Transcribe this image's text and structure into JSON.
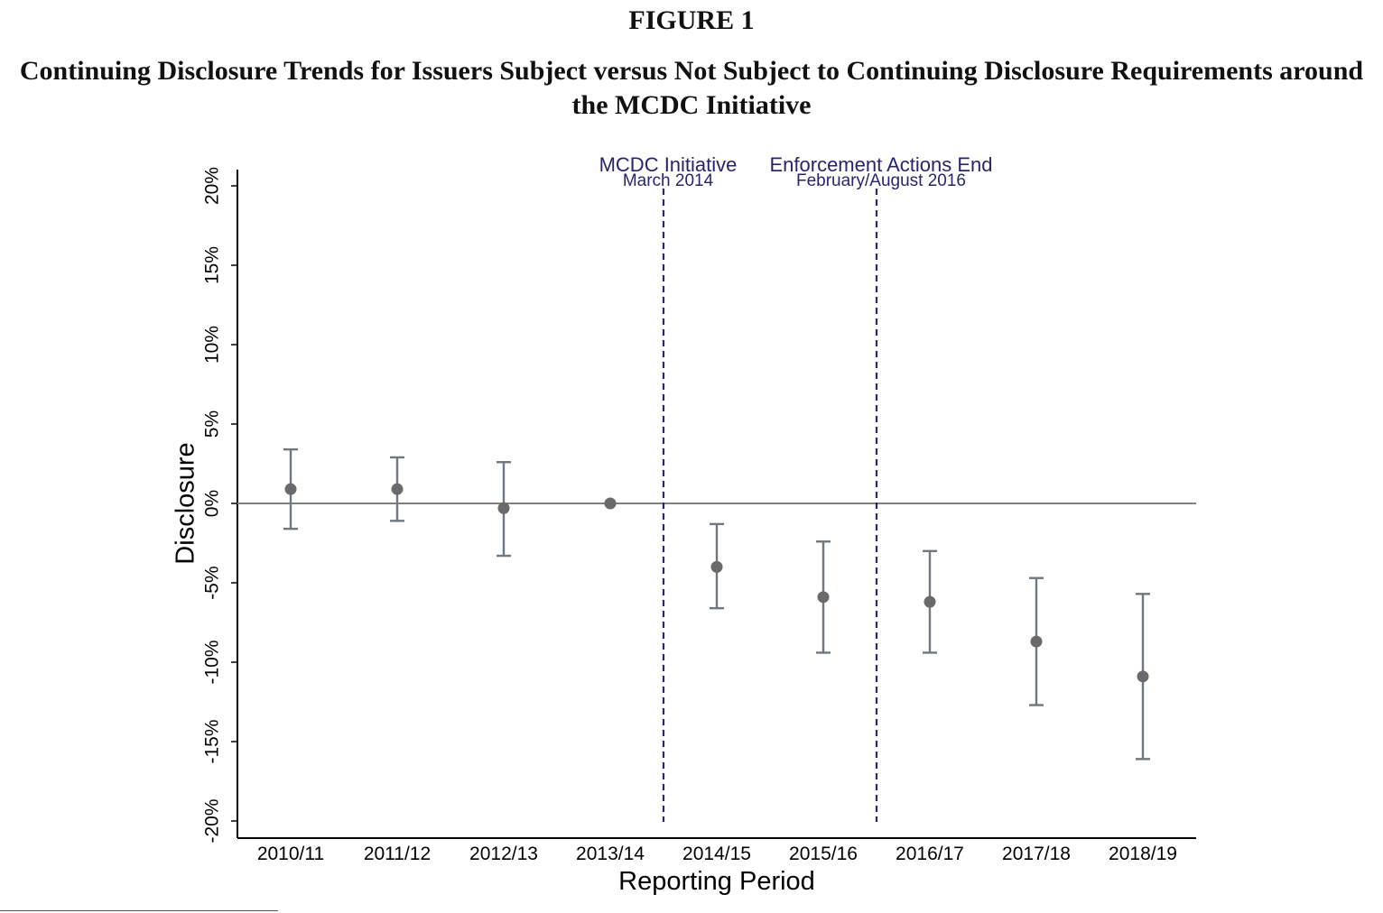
{
  "figure": {
    "label": "FIGURE 1",
    "title_line1": "Continuing Disclosure Trends for Issuers Subject versus Not Subject to Continuing Disclosure Requirements around",
    "title_line2": "the MCDC Initiative"
  },
  "chart_data": {
    "type": "scatter",
    "subtype": "coefficient plot with 95% error bars",
    "xlabel": "Reporting Period",
    "ylabel": "Disclosure",
    "categories": [
      "2010/11",
      "2011/12",
      "2012/13",
      "2013/14",
      "2014/15",
      "2015/16",
      "2016/17",
      "2017/18",
      "2018/19"
    ],
    "values": [
      0.9,
      0.9,
      -0.3,
      0.0,
      -4.0,
      -5.9,
      -6.2,
      -8.7,
      -10.9
    ],
    "ci_lower": [
      -1.6,
      -1.1,
      -3.3,
      0.0,
      -6.6,
      -9.4,
      -9.4,
      -12.7,
      -16.1
    ],
    "ci_upper": [
      3.4,
      2.9,
      2.6,
      0.0,
      -1.3,
      -2.4,
      -3.0,
      -4.7,
      -5.7
    ],
    "ylim": [
      -21,
      21
    ],
    "yticks": [
      -20,
      -15,
      -10,
      -5,
      0,
      5,
      10,
      15,
      20
    ],
    "ytick_labels": [
      "-20%",
      "-15%",
      "-10%",
      "-5%",
      "0%",
      "5%",
      "10%",
      "15%",
      "20%"
    ],
    "reference_line_y": 0,
    "annotations": [
      {
        "after_category_index": 3,
        "title": "MCDC Initiative",
        "subtitle": "March 2014"
      },
      {
        "after_category_index": 5,
        "title": "Enforcement Actions End",
        "subtitle": "February/August 2016"
      }
    ],
    "grid": false,
    "colors": {
      "marker": "#6a6a6a",
      "errorbar": "#6f7780",
      "zero_line": "#808080",
      "reference_line": "#26266e",
      "annotation_text": "#26266e"
    }
  }
}
